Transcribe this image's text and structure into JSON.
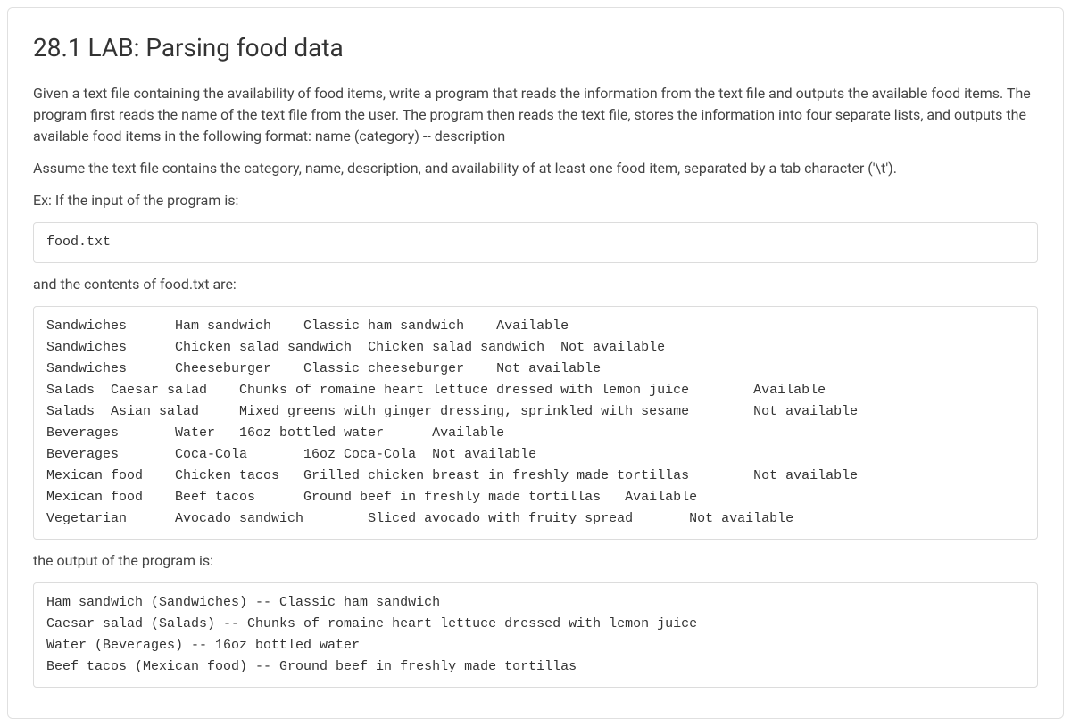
{
  "title": "28.1 LAB: Parsing food data",
  "para1": "Given a text file containing the availability of food items, write a program that reads the information from the text file and outputs the available food items. The program first reads the name of the text file from the user. The program then reads the text file, stores the information into four separate lists, and outputs the available food items in the following format: name (category) -- description",
  "para2": "Assume the text file contains the category, name, description, and availability of at least one food item, separated by a tab character ('\\t').",
  "para3": "Ex: If the input of the program is:",
  "input_code": "food.txt",
  "para4": "and the contents of food.txt are:",
  "file_contents": "Sandwiches\tHam sandwich\tClassic ham sandwich\tAvailable\nSandwiches\tChicken salad sandwich\tChicken salad sandwich\tNot available\nSandwiches\tCheeseburger\tClassic cheeseburger\tNot available\nSalads\tCaesar salad\tChunks of romaine heart lettuce dressed with lemon juice\tAvailable\nSalads\tAsian salad\tMixed greens with ginger dressing, sprinkled with sesame\tNot available\nBeverages\tWater\t16oz bottled water\tAvailable\nBeverages\tCoca-Cola\t16oz Coca-Cola\tNot available\nMexican food\tChicken tacos\tGrilled chicken breast in freshly made tortillas\tNot available\nMexican food\tBeef tacos\tGround beef in freshly made tortillas\tAvailable\nVegetarian\tAvocado sandwich\tSliced avocado with fruity spread\tNot available",
  "para5": "the output of the program is:",
  "output_code": "Ham sandwich (Sandwiches) -- Classic ham sandwich\nCaesar salad (Salads) -- Chunks of romaine heart lettuce dressed with lemon juice\nWater (Beverages) -- 16oz bottled water\nBeef tacos (Mexican food) -- Ground beef in freshly made tortillas"
}
